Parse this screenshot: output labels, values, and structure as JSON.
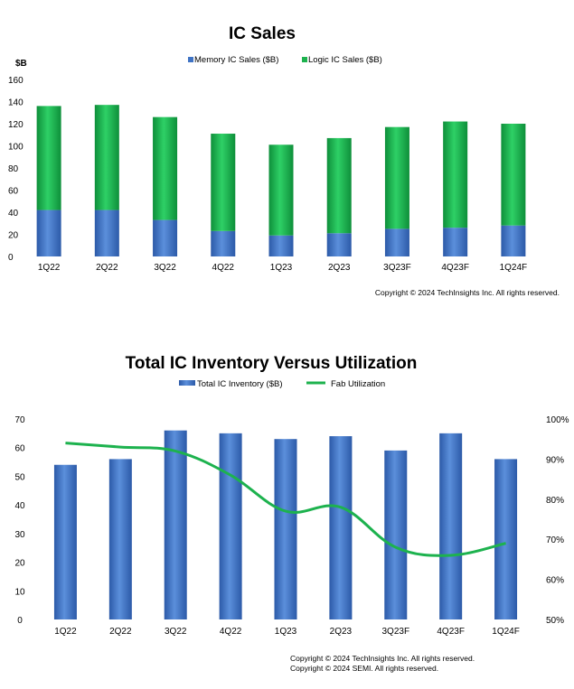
{
  "chart_data": [
    {
      "type": "bar",
      "stacked": true,
      "title": "IC Sales",
      "ylabel": "$B",
      "ylim": [
        0,
        160
      ],
      "yticks": [
        "0",
        "20",
        "40",
        "60",
        "80",
        "100",
        "120",
        "140",
        "160"
      ],
      "categories": [
        "1Q22",
        "2Q22",
        "3Q22",
        "4Q22",
        "1Q23",
        "2Q23",
        "3Q23F",
        "4Q23F",
        "1Q24F"
      ],
      "series": [
        {
          "name": "Memory IC Sales ($B)",
          "color": "#3f73c4",
          "values": [
            42,
            42,
            33,
            23,
            19,
            21,
            25,
            26,
            28
          ]
        },
        {
          "name": "Logic IC Sales ($B)",
          "color": "#1db24e",
          "values": [
            94,
            95,
            93,
            88,
            82,
            86,
            92,
            96,
            92
          ]
        }
      ],
      "legend_position": "top",
      "grid": false,
      "copyright": [
        "Copyright © 2024 TechInsights Inc.  All rights reserved."
      ]
    },
    {
      "type": "bar",
      "title": "Total IC Inventory Versus Utilization",
      "ylim": [
        0,
        70
      ],
      "yticks": [
        "0",
        "10",
        "20",
        "30",
        "40",
        "50",
        "60",
        "70"
      ],
      "y2lim": [
        50,
        100
      ],
      "y2ticks": [
        "50%",
        "60%",
        "70%",
        "80%",
        "90%",
        "100%"
      ],
      "categories": [
        "1Q22",
        "2Q22",
        "3Q22",
        "4Q22",
        "1Q23",
        "2Q23",
        "3Q23F",
        "4Q23F",
        "1Q24F"
      ],
      "series": [
        {
          "name": "Total IC Inventory ($B)",
          "type": "bar",
          "axis": "left",
          "color": "#3f73c4",
          "values": [
            54,
            56,
            66,
            65,
            63,
            64,
            59,
            65,
            56
          ]
        },
        {
          "name": "Fab Utilization",
          "type": "line",
          "axis": "right",
          "color": "#1db24e",
          "values": [
            94,
            93,
            92,
            86,
            77,
            78,
            68,
            66,
            69
          ]
        }
      ],
      "legend_position": "top",
      "grid": false,
      "copyright": [
        "Copyright © 2024 TechInsights Inc.  All rights reserved.",
        "Copyright © 2024 SEMI.  All rights reserved."
      ]
    }
  ]
}
